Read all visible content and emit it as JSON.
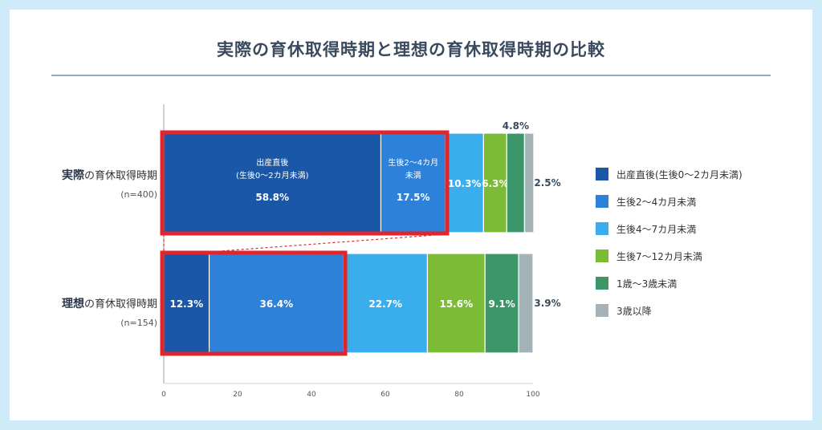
{
  "title": "実際の育休取得時期と理想の育休取得時期の比較",
  "chart_data": {
    "type": "bar",
    "orientation": "horizontal-stacked",
    "xlim": [
      0,
      100
    ],
    "x_ticks": [
      "0",
      "20",
      "40",
      "60",
      "80",
      "100"
    ],
    "rows": [
      {
        "label_bold": "実際",
        "label_rest": "の育休取得時期",
        "sample": "(n=400)",
        "values": [
          58.8,
          17.5,
          10.3,
          6.3,
          4.8,
          2.5
        ],
        "value_labels": [
          "58.8%",
          "17.5%",
          "10.3%",
          "6.3%",
          "4.8%",
          "2.5%"
        ],
        "segment_titles": [
          [
            "出産直後",
            "(生後0〜2カ月未満)"
          ],
          [
            "生後2〜4カ月",
            "未満"
          ],
          [],
          [],
          [],
          []
        ]
      },
      {
        "label_bold": "理想",
        "label_rest": "の育休取得時期",
        "sample": "(n=154)",
        "values": [
          12.3,
          36.4,
          22.7,
          15.6,
          9.1,
          3.9
        ],
        "value_labels": [
          "12.3%",
          "36.4%",
          "22.7%",
          "15.6%",
          "9.1%",
          "3.9%"
        ],
        "segment_titles": [
          [],
          [],
          [],
          [],
          [],
          []
        ]
      }
    ],
    "series": [
      {
        "name": "出産直後(生後0〜2カ月未満)",
        "color": "#1a57a7"
      },
      {
        "name": "生後2〜4カ月未満",
        "color": "#2d81d8"
      },
      {
        "name": "生後4〜7カ月未満",
        "color": "#3aaeed"
      },
      {
        "name": "生後7〜12カ月未満",
        "color": "#7cbb35"
      },
      {
        "name": "1歳〜3歳未満",
        "color": "#3d966a"
      },
      {
        "name": "3歳以降",
        "color": "#a4b3b7"
      }
    ],
    "highlight_color": "#e0262c"
  }
}
